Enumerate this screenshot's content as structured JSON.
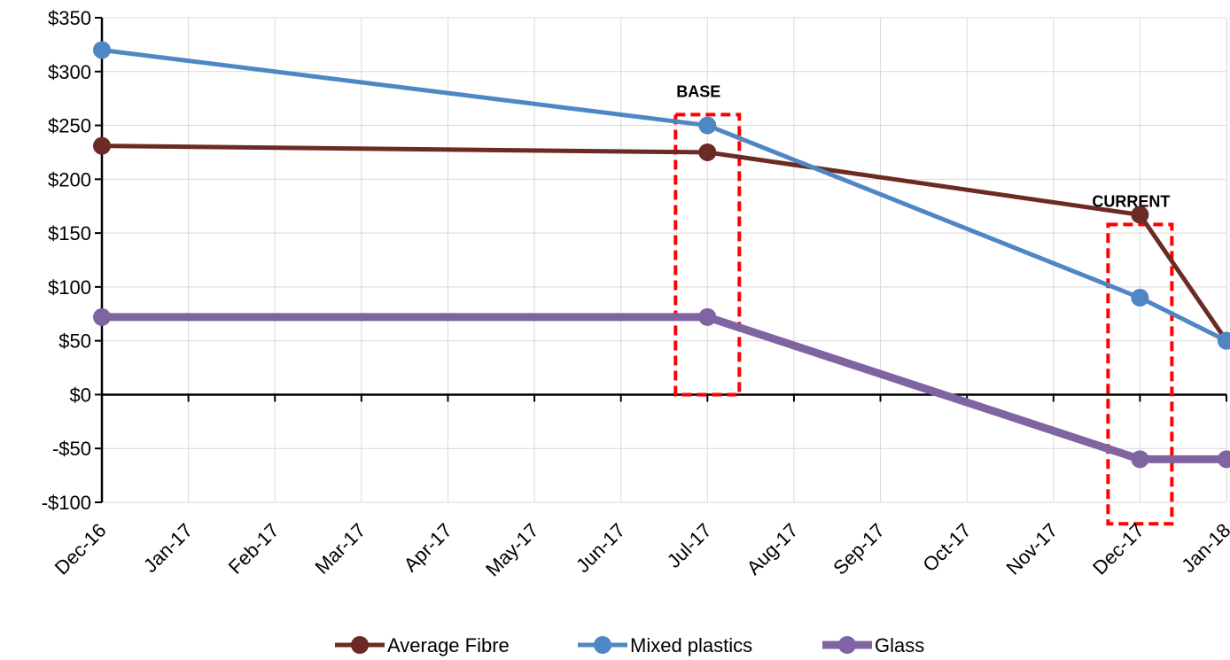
{
  "chart_data": {
    "type": "line",
    "title": "",
    "xlabel": "",
    "ylabel": "",
    "x": [
      "Dec-16",
      "Jan-17",
      "Feb-17",
      "Mar-17",
      "Apr-17",
      "May-17",
      "Jun-17",
      "Jul-17",
      "Aug-17",
      "Sep-17",
      "Oct-17",
      "Nov-17",
      "Dec-17",
      "Jan-18"
    ],
    "ylim": [
      -100,
      350
    ],
    "y_ticks": [
      350,
      300,
      250,
      200,
      150,
      100,
      50,
      0,
      -50,
      -100
    ],
    "y_tick_labels": [
      "$350",
      "$300",
      "$250",
      "$200",
      "$150",
      "$100",
      "$50",
      "$0",
      "-$50",
      "-$100"
    ],
    "grid": true,
    "legend_position": "bottom",
    "series": [
      {
        "name": "Average Fibre",
        "color": "#6b2b24",
        "width": 5,
        "points": [
          [
            "Dec-16",
            231
          ],
          [
            "Jul-17",
            225
          ],
          [
            "Dec-17",
            167
          ],
          [
            "Jan-18",
            50
          ]
        ]
      },
      {
        "name": "Mixed plastics",
        "color": "#4f86c4",
        "width": 5,
        "points": [
          [
            "Dec-16",
            320
          ],
          [
            "Jul-17",
            250
          ],
          [
            "Dec-17",
            90
          ],
          [
            "Jan-18",
            50
          ]
        ]
      },
      {
        "name": "Glass",
        "color": "#8064a2",
        "width": 9,
        "points": [
          [
            "Dec-16",
            72
          ],
          [
            "Jul-17",
            72
          ],
          [
            "Dec-17",
            -60
          ],
          [
            "Jan-18",
            -60
          ]
        ]
      }
    ],
    "annotations": [
      {
        "label": "BASE",
        "x": "Jul-17",
        "y_top": 260,
        "y_bottom": 0,
        "style": "red-dashed-box"
      },
      {
        "label": "CURRENT",
        "x": "Dec-17",
        "y_top": 158,
        "y_bottom": -120,
        "style": "red-dashed-box"
      }
    ]
  }
}
